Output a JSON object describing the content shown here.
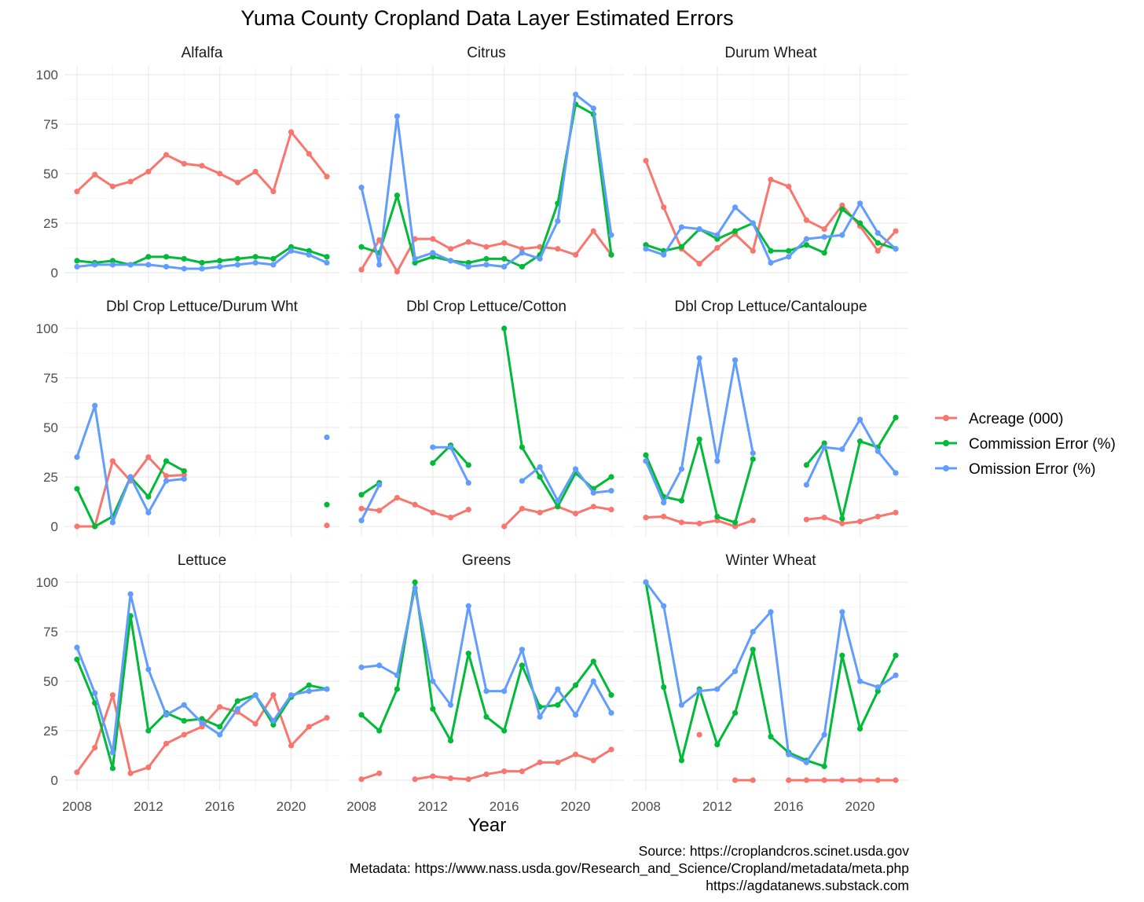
{
  "title": "Yuma County Cropland Data Layer Estimated Errors",
  "x_axis_title": "Year",
  "legend": [
    {
      "label": "Acreage (000)",
      "color": "#F8766D"
    },
    {
      "label": "Commission Error (%)",
      "color": "#00BA38"
    },
    {
      "label": "Omission Error (%)",
      "color": "#619CFF"
    }
  ],
  "caption": [
    "Source: https://croplandcros.scinet.usda.gov",
    "Metadata: https://www.nass.usda.gov/Research_and_Science/Cropland/metadata/meta.php",
    "https://agdatanews.substack.com"
  ],
  "chart_data": {
    "type": "line",
    "facets_layout": "3x3",
    "xlim": [
      2008,
      2022
    ],
    "ylim": [
      0,
      100
    ],
    "x_ticks": [
      2008,
      2012,
      2016,
      2020
    ],
    "y_ticks": [
      0,
      25,
      50,
      75,
      100
    ],
    "grid": true,
    "legend_position": "right",
    "x": [
      2008,
      2009,
      2010,
      2011,
      2012,
      2013,
      2014,
      2015,
      2016,
      2017,
      2018,
      2019,
      2020,
      2021,
      2022
    ],
    "panels": [
      {
        "title": "Alfalfa",
        "series": [
          {
            "name": "Acreage (000)",
            "values": [
              41,
              49.5,
              43.5,
              46,
              51,
              59.5,
              55,
              54,
              50,
              45.5,
              51,
              41,
              71,
              60,
              48.5
            ]
          },
          {
            "name": "Commission Error (%)",
            "values": [
              6,
              5,
              6,
              4,
              8,
              8,
              7,
              5,
              6,
              7,
              8,
              7,
              13,
              11,
              8
            ]
          },
          {
            "name": "Omission Error (%)",
            "values": [
              3,
              4,
              4,
              4,
              4,
              3,
              2,
              2,
              3,
              4,
              5,
              4,
              11,
              9,
              5
            ]
          }
        ]
      },
      {
        "title": "Citrus",
        "series": [
          {
            "name": "Acreage (000)",
            "values": [
              1.5,
              16.5,
              0.5,
              17,
              17,
              12,
              15.5,
              13,
              15,
              12,
              13,
              12,
              9,
              21,
              9
            ]
          },
          {
            "name": "Commission Error (%)",
            "values": [
              13,
              10,
              39,
              5,
              8,
              6,
              5,
              7,
              7,
              3,
              9,
              35,
              85,
              80,
              9
            ]
          },
          {
            "name": "Omission Error (%)",
            "values": [
              43,
              4,
              79,
              7,
              10,
              6,
              3,
              4,
              3,
              10,
              7,
              26,
              90,
              83,
              19
            ]
          }
        ]
      },
      {
        "title": "Durum Wheat",
        "series": [
          {
            "name": "Acreage (000)",
            "values": [
              56.5,
              33,
              12,
              4.5,
              12.5,
              19.5,
              11,
              47,
              43.5,
              26.5,
              22,
              34,
              23.5,
              11,
              21
            ]
          },
          {
            "name": "Commission Error (%)",
            "values": [
              14,
              11,
              13,
              22,
              17,
              21,
              25,
              11,
              11,
              14,
              10,
              32,
              25,
              15,
              12
            ]
          },
          {
            "name": "Omission Error (%)",
            "values": [
              12,
              9,
              23,
              22,
              19,
              33,
              25,
              5,
              8,
              17,
              18,
              19,
              35,
              20,
              12
            ]
          }
        ]
      },
      {
        "title": "Dbl Crop Lettuce/Durum Wht",
        "series": [
          {
            "name": "Acreage (000)",
            "values": [
              0,
              0,
              33,
              23,
              35,
              25.5,
              26,
              null,
              null,
              null,
              null,
              null,
              null,
              null,
              0.5
            ]
          },
          {
            "name": "Commission Error (%)",
            "values": [
              19,
              0,
              5,
              25,
              15,
              33,
              28,
              null,
              null,
              null,
              null,
              null,
              null,
              null,
              11
            ]
          },
          {
            "name": "Omission Error (%)",
            "values": [
              35,
              61,
              2,
              25,
              7,
              23,
              24,
              null,
              null,
              null,
              null,
              null,
              null,
              null,
              45
            ]
          }
        ]
      },
      {
        "title": "Dbl Crop Lettuce/Cotton",
        "series": [
          {
            "name": "Acreage (000)",
            "values": [
              9,
              8,
              14.5,
              11,
              7,
              4.5,
              8.5,
              null,
              0,
              9,
              7,
              10,
              6.5,
              10,
              8.5
            ]
          },
          {
            "name": "Commission Error (%)",
            "values": [
              16,
              22,
              null,
              null,
              32,
              41,
              31,
              null,
              100,
              40,
              25,
              10,
              27,
              19,
              25
            ]
          },
          {
            "name": "Omission Error (%)",
            "values": [
              3,
              21,
              null,
              null,
              40,
              40,
              22,
              null,
              null,
              23,
              30,
              13,
              29,
              17,
              18
            ]
          }
        ]
      },
      {
        "title": "Dbl Crop Lettuce/Cantaloupe",
        "series": [
          {
            "name": "Acreage (000)",
            "values": [
              4.5,
              5,
              2,
              1.5,
              3,
              0,
              3,
              null,
              null,
              3.5,
              4.5,
              1.5,
              2.5,
              5,
              7
            ]
          },
          {
            "name": "Commission Error (%)",
            "values": [
              36,
              15,
              13,
              44,
              5,
              2,
              34,
              null,
              null,
              31,
              42,
              4,
              43,
              40,
              55
            ]
          },
          {
            "name": "Omission Error (%)",
            "values": [
              33,
              12,
              29,
              85,
              33,
              84,
              37,
              null,
              null,
              21,
              40,
              39,
              54,
              38,
              27
            ]
          }
        ]
      },
      {
        "title": "Lettuce",
        "series": [
          {
            "name": "Acreage (000)",
            "values": [
              4,
              16.5,
              43,
              3.5,
              6.5,
              18.5,
              23,
              27,
              37,
              34.5,
              28.5,
              43,
              17.5,
              27,
              31.5
            ]
          },
          {
            "name": "Commission Error (%)",
            "values": [
              61,
              39,
              6,
              83,
              25,
              34,
              30,
              31,
              27,
              40,
              43,
              28,
              42,
              48,
              46
            ]
          },
          {
            "name": "Omission Error (%)",
            "values": [
              67,
              44,
              14,
              94,
              56,
              33,
              38,
              29,
              23,
              36,
              43,
              30,
              43,
              45,
              46
            ]
          }
        ]
      },
      {
        "title": "Greens",
        "series": [
          {
            "name": "Acreage (000)",
            "values": [
              0.5,
              3.5,
              null,
              0.5,
              2,
              1,
              0.5,
              3,
              4.5,
              4.5,
              9,
              9,
              13,
              10,
              15.5
            ]
          },
          {
            "name": "Commission Error (%)",
            "values": [
              33,
              25,
              46,
              100,
              36,
              20,
              64,
              32,
              25,
              58,
              37,
              38,
              48,
              60,
              43
            ]
          },
          {
            "name": "Omission Error (%)",
            "values": [
              57,
              58,
              53,
              97,
              50,
              38,
              88,
              45,
              45,
              66,
              32,
              46,
              33,
              50,
              34
            ]
          }
        ]
      },
      {
        "title": "Winter Wheat",
        "series": [
          {
            "name": "Acreage (000)",
            "values": [
              null,
              null,
              null,
              23,
              null,
              0,
              0,
              null,
              0,
              0,
              0,
              0,
              0,
              0,
              0
            ]
          },
          {
            "name": "Commission Error (%)",
            "values": [
              100,
              47,
              10,
              46,
              18,
              34,
              66,
              22,
              14,
              10,
              7,
              63,
              26,
              45,
              63
            ]
          },
          {
            "name": "Omission Error (%)",
            "values": [
              100,
              88,
              38,
              45,
              46,
              55,
              75,
              85,
              13,
              9,
              23,
              85,
              50,
              47,
              53
            ]
          }
        ]
      }
    ]
  }
}
